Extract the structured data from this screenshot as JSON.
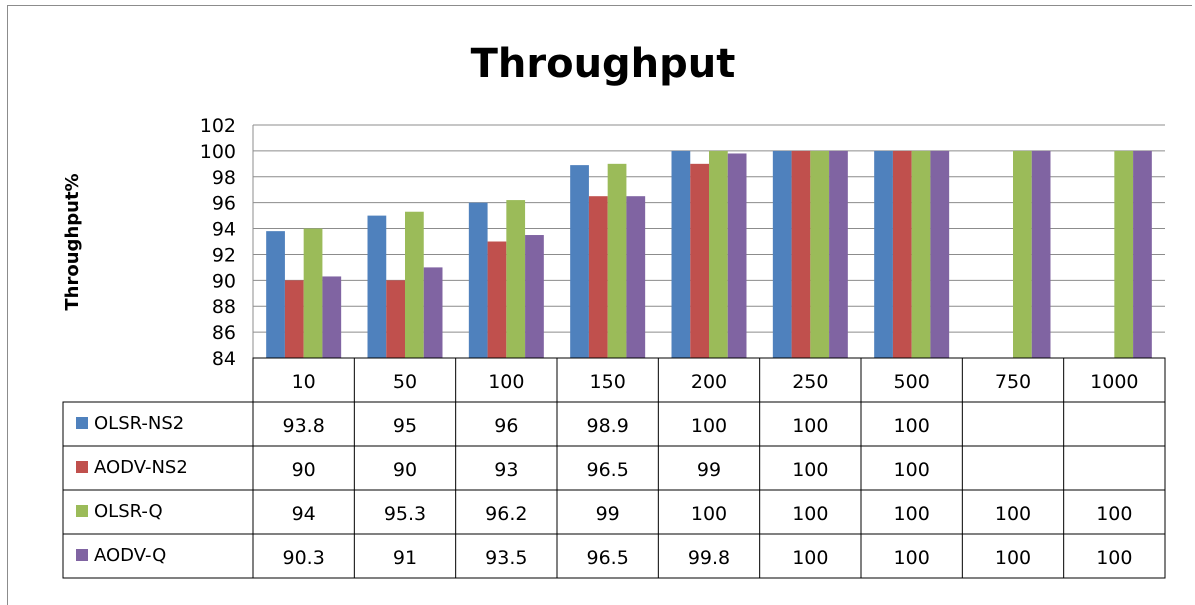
{
  "chart_data": {
    "type": "bar",
    "title": "Throughput",
    "ylabel": "Throughput%",
    "xlabel": "",
    "ylim": [
      84,
      102
    ],
    "yticks": [
      84,
      86,
      88,
      90,
      92,
      94,
      96,
      98,
      100,
      102
    ],
    "grid": true,
    "legend": "data-table-left",
    "categories": [
      "10",
      "50",
      "100",
      "150",
      "200",
      "250",
      "500",
      "750",
      "1000"
    ],
    "series": [
      {
        "name": "OLSR-NS2",
        "color": "#4f81bd",
        "values": [
          93.8,
          95,
          96,
          98.9,
          100,
          100,
          100,
          null,
          null
        ]
      },
      {
        "name": "AODV-NS2",
        "color": "#c0504d",
        "values": [
          90,
          90,
          93,
          96.5,
          99,
          100,
          100,
          null,
          null
        ]
      },
      {
        "name": "OLSR-Q",
        "color": "#9bbb59",
        "values": [
          94,
          95.3,
          96.2,
          99,
          100,
          100,
          100,
          100,
          100
        ]
      },
      {
        "name": "AODV-Q",
        "color": "#8064a2",
        "values": [
          90.3,
          91,
          93.5,
          96.5,
          99.8,
          100,
          100,
          100,
          100
        ]
      }
    ]
  }
}
